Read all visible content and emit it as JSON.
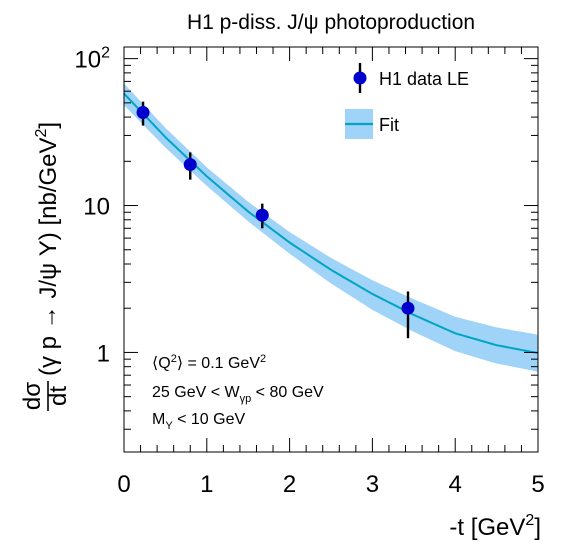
{
  "chart_data": {
    "type": "scatter",
    "title": "H1 p-diss. J/ψ photoproduction",
    "xlabel": "-t [GeV²]",
    "ylabel": "dσ/dt (γ p → J/ψ Y) [nb/GeV²]",
    "xlim": [
      0,
      5
    ],
    "ylim": [
      0.21,
      120
    ],
    "yscale": "log",
    "grid": false,
    "legend_position": "top-right",
    "x_ticks": [
      {
        "value": 0,
        "label": "0"
      },
      {
        "value": 1,
        "label": "1"
      },
      {
        "value": 2,
        "label": "2"
      },
      {
        "value": 3,
        "label": "3"
      },
      {
        "value": 4,
        "label": "4"
      },
      {
        "value": 5,
        "label": "5"
      }
    ],
    "y_ticks": [
      {
        "value": 1,
        "label": "1"
      },
      {
        "value": 10,
        "label": "10"
      },
      {
        "value": 100,
        "label": "10²"
      }
    ],
    "series": [
      {
        "name": "H1 data LE",
        "kind": "points",
        "color": "#0000cc",
        "points": [
          {
            "x": 0.23,
            "y": 43,
            "err_low": 8,
            "err_high": 8
          },
          {
            "x": 0.8,
            "y": 19,
            "err_low": 4,
            "err_high": 4
          },
          {
            "x": 1.67,
            "y": 8.6,
            "err_low": 1.6,
            "err_high": 1.7
          },
          {
            "x": 3.43,
            "y": 2.0,
            "err_low": 0.75,
            "err_high": 0.6
          }
        ]
      },
      {
        "name": "Fit",
        "kind": "curve_with_band",
        "color": "#00a5c4",
        "band_color": "#9fd3f7",
        "x": [
          0,
          0.5,
          1,
          1.5,
          2,
          2.5,
          3,
          3.5,
          4,
          4.5,
          5
        ],
        "y": [
          57.8,
          29.2,
          15.8,
          9.1,
          5.6,
          3.65,
          2.5,
          1.8,
          1.35,
          1.12,
          0.99
        ],
        "band_low": [
          48.2,
          24.8,
          13.6,
          7.8,
          4.7,
          2.95,
          1.95,
          1.38,
          1.02,
          0.84,
          0.74
        ],
        "band_high": [
          67.7,
          33.8,
          18.2,
          10.6,
          6.6,
          4.4,
          3.1,
          2.3,
          1.75,
          1.48,
          1.32
        ]
      }
    ],
    "annotations": [
      {
        "id": "q2",
        "text": "⟨Q²⟩ = 0.1 GeV²"
      },
      {
        "id": "wgp",
        "text": "25 GeV < Wγp < 80 GeV"
      },
      {
        "id": "my",
        "text": "MY < 10 GeV"
      }
    ]
  }
}
